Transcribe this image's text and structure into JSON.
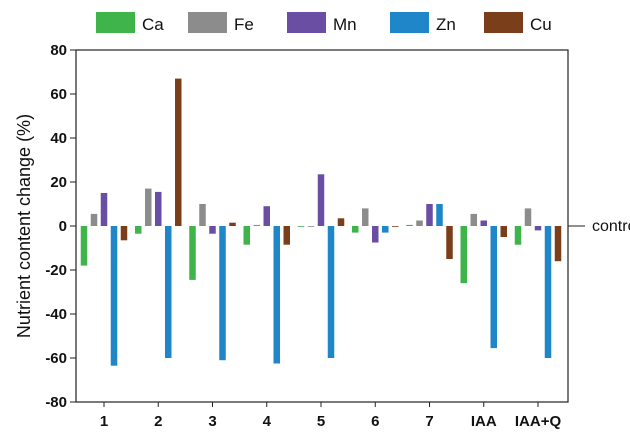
{
  "chart_data": {
    "type": "bar",
    "title": "",
    "xlabel": "",
    "ylabel": "Nutrient content change (%)",
    "ylim": [
      -80,
      80
    ],
    "yticks": [
      80,
      60,
      40,
      20,
      0,
      -20,
      -40,
      -60,
      -80
    ],
    "grid": false,
    "legend_position": "top",
    "annotation": "control",
    "categories": [
      "1",
      "2",
      "3",
      "4",
      "5",
      "6",
      "7",
      "IAA",
      "IAA+Q"
    ],
    "series": [
      {
        "name": "Ca",
        "color": "#3fb44b",
        "values": [
          -18,
          -3.5,
          -24.5,
          -8.5,
          0,
          -3,
          0.5,
          -26,
          -8.5
        ]
      },
      {
        "name": "Fe",
        "color": "#8c8c8c",
        "values": [
          5.5,
          17,
          10,
          0.5,
          0,
          8,
          2.5,
          5.5,
          8
        ]
      },
      {
        "name": "Mn",
        "color": "#6a4ea3",
        "values": [
          15,
          15.5,
          -3.5,
          9,
          23.5,
          -7.5,
          10,
          2.5,
          -2
        ]
      },
      {
        "name": "Zn",
        "color": "#1f86c9",
        "values": [
          -63.5,
          -60,
          -61,
          -62.5,
          -60,
          -3,
          10,
          -55.5,
          -60
        ]
      },
      {
        "name": "Cu",
        "color": "#7a3f1a",
        "values": [
          -6.5,
          67,
          1.5,
          -8.5,
          3.5,
          0,
          -15,
          -5,
          -16
        ]
      }
    ]
  }
}
